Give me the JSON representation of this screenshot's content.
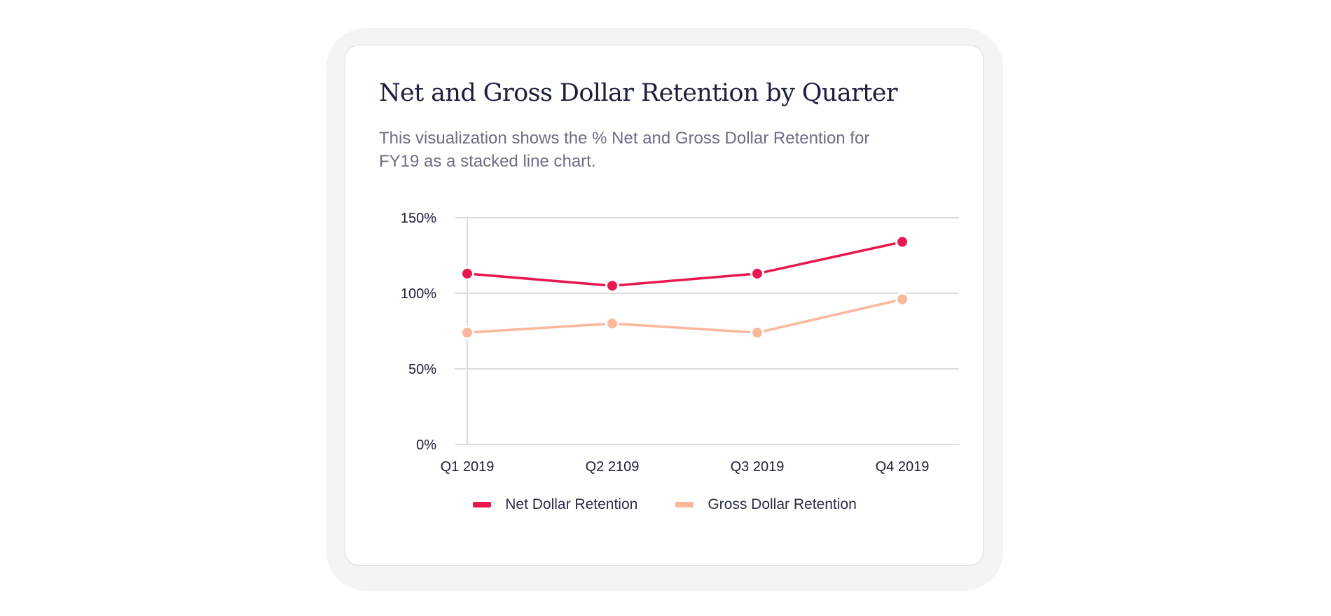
{
  "card": {
    "title": "Net and Gross Dollar Retention by Quarter",
    "description": "This visualization shows the % Net and Gross Dollar Retention for FY19 as a stacked line chart."
  },
  "colors": {
    "net": "#e8174f",
    "gross": "#fbb79b",
    "grid": "#dcdce0",
    "text": "#1b1f3b"
  },
  "chart_data": {
    "type": "line",
    "title": "Net and Gross Dollar Retention by Quarter",
    "categories": [
      "Q1 2019",
      "Q2 2109",
      "Q3 2019",
      "Q4 2019"
    ],
    "series": [
      {
        "name": "Net Dollar Retention",
        "values": [
          113,
          105,
          113,
          134
        ]
      },
      {
        "name": "Gross Dollar Retention",
        "values": [
          74,
          80,
          74,
          96
        ]
      }
    ],
    "yticks": [
      0,
      50,
      100,
      150
    ],
    "ytick_labels": [
      "0%",
      "50%",
      "100%",
      "150%"
    ],
    "ylim": [
      0,
      150
    ],
    "xlabel": "",
    "ylabel": "",
    "grid": true,
    "legend": "bottom"
  }
}
